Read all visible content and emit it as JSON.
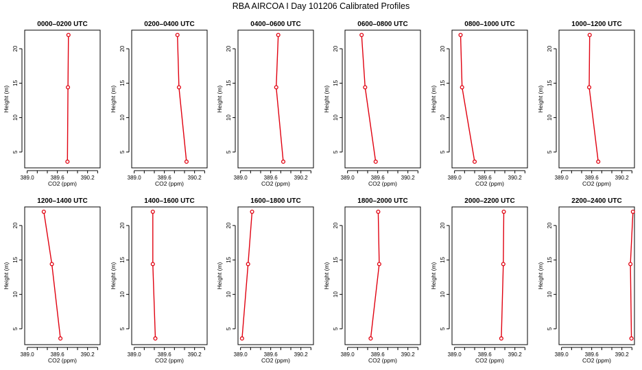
{
  "chart_data": {
    "type": "line",
    "title": "RBA AIRCOA I  Day 101206  Calibrated Profiles",
    "xlabel": "CO2 (ppm)",
    "ylabel": "Height (m)",
    "xlim": [
      388.95,
      390.45
    ],
    "ylim": [
      2.7,
      22.7
    ],
    "xticks": [
      389.0,
      389.2,
      389.4,
      389.6,
      389.8,
      390.0,
      390.2,
      390.4
    ],
    "xtick_labels": [
      "389.0",
      "389.6",
      "390.2"
    ],
    "yticks": [
      5,
      10,
      15,
      20
    ],
    "ytick_labels": [
      "5",
      "10",
      "15",
      "20"
    ],
    "heights": [
      22,
      14.4,
      3.6
    ],
    "line_color": "#e0000f",
    "panels": [
      {
        "title": "0000–0200 UTC",
        "co2": [
          389.82,
          389.81,
          389.8
        ]
      },
      {
        "title": "0200–0400 UTC",
        "co2": [
          389.86,
          389.89,
          390.04
        ]
      },
      {
        "title": "0400–0600 UTC",
        "co2": [
          389.75,
          389.71,
          389.85
        ]
      },
      {
        "title": "0600–0800 UTC",
        "co2": [
          389.28,
          389.35,
          389.56
        ]
      },
      {
        "title": "0800–1000 UTC",
        "co2": [
          389.12,
          389.15,
          389.4
        ]
      },
      {
        "title": "1000–1200 UTC",
        "co2": [
          389.56,
          389.55,
          389.73
        ]
      },
      {
        "title": "1200–1400 UTC",
        "co2": [
          389.33,
          389.49,
          389.66
        ]
      },
      {
        "title": "1400–1600 UTC",
        "co2": [
          389.37,
          389.37,
          389.42
        ]
      },
      {
        "title": "1600–1800 UTC",
        "co2": [
          389.23,
          389.15,
          389.03
        ]
      },
      {
        "title": "1800–2000 UTC",
        "co2": [
          389.61,
          389.63,
          389.46
        ]
      },
      {
        "title": "2000–2200 UTC",
        "co2": [
          389.98,
          389.97,
          389.93
        ]
      },
      {
        "title": "2200–2400 UTC",
        "co2": [
          390.42,
          390.37,
          390.39
        ]
      }
    ]
  }
}
